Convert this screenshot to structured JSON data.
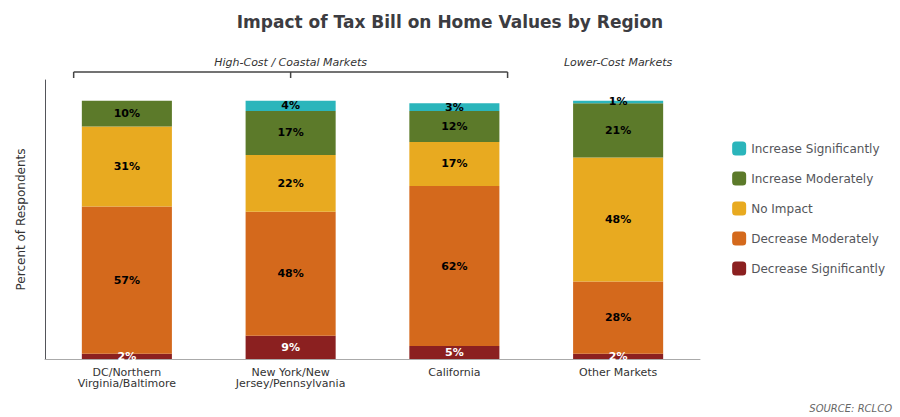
{
  "chart_data": {
    "type": "bar",
    "title": "Impact of Tax Bill on Home Values by Region",
    "ylabel": "Percent of Respondents",
    "categories": [
      "DC/Northern\nVirginia/Baltimore",
      "New York/New\nJersey/Pennsylvania",
      "California",
      "Other Markets"
    ],
    "series": [
      {
        "name": "Decrease Significantly",
        "color": "#8B2020",
        "values": [
          2,
          9,
          5,
          2
        ],
        "value_labels": [
          "2%",
          "9%",
          "5%",
          "2%"
        ]
      },
      {
        "name": "Decrease Moderately",
        "color": "#D4691C",
        "values": [
          57,
          48,
          62,
          28
        ],
        "value_labels": [
          "57%",
          "48%",
          "62%",
          "28%"
        ]
      },
      {
        "name": "No Impact",
        "color": "#E8AA20",
        "values": [
          31,
          22,
          17,
          48
        ],
        "value_labels": [
          "31%",
          "22%",
          "17%",
          "48%"
        ]
      },
      {
        "name": "Increase Moderately",
        "color": "#5C7A2A",
        "values": [
          10,
          17,
          12,
          21
        ],
        "value_labels": [
          "10%",
          "17%",
          "12%",
          "21%"
        ]
      },
      {
        "name": "Increase Significantly",
        "color": "#2BB5BB",
        "values": [
          0,
          4,
          3,
          1
        ],
        "value_labels": [
          null,
          "4%",
          "3%",
          "1%"
        ]
      }
    ],
    "stacked": true,
    "data_labels": true,
    "ylim": [
      0,
      108
    ],
    "yticks": [],
    "grid": false,
    "tick_labels": "x",
    "legend": "right",
    "annotations": [
      "High-Cost / Coastal Markets",
      "Lower-Cost Markets"
    ],
    "source": "SOURCE: RCLCO"
  }
}
